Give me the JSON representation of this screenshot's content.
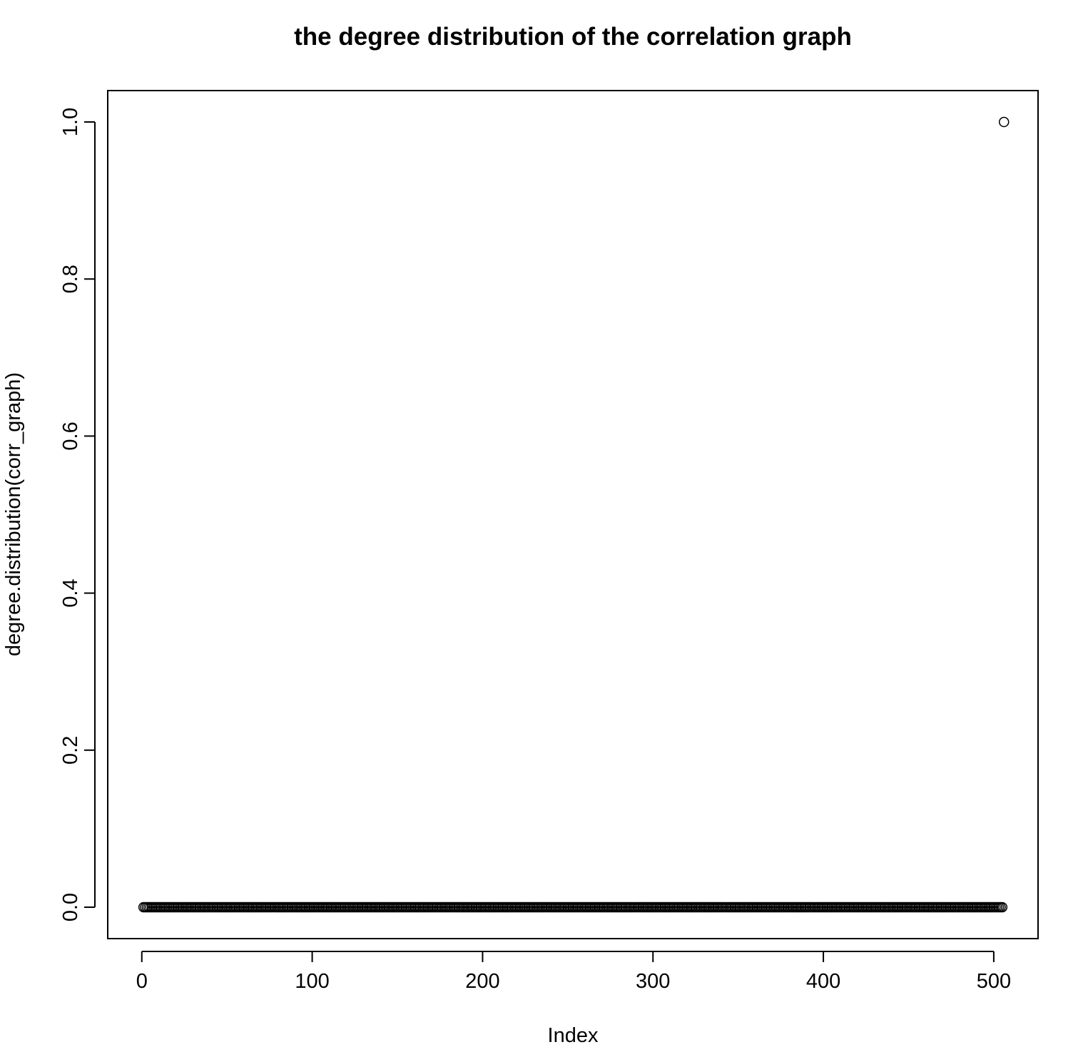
{
  "chart_data": {
    "type": "scatter",
    "title": "the degree distribution of the correlation graph",
    "xlabel": "Index",
    "ylabel": "degree.distribution(corr_graph)",
    "xlim": [
      -20,
      526
    ],
    "ylim": [
      -0.04,
      1.04
    ],
    "xticks": [
      0,
      100,
      200,
      300,
      400,
      500
    ],
    "yticks": [
      0.0,
      0.2,
      0.4,
      0.6,
      0.8,
      1.0
    ],
    "xtick_labels": [
      "0",
      "100",
      "200",
      "300",
      "400",
      "500"
    ],
    "ytick_labels": [
      "0.0",
      "0.2",
      "0.4",
      "0.6",
      "0.8",
      "1.0"
    ],
    "grid": false,
    "marker": "open-circle",
    "series": [
      {
        "x_start": 1,
        "x_end": 506,
        "values_rule": "all 0 except last index",
        "zero_value": 0.0,
        "last_value": 1.0
      }
    ]
  }
}
